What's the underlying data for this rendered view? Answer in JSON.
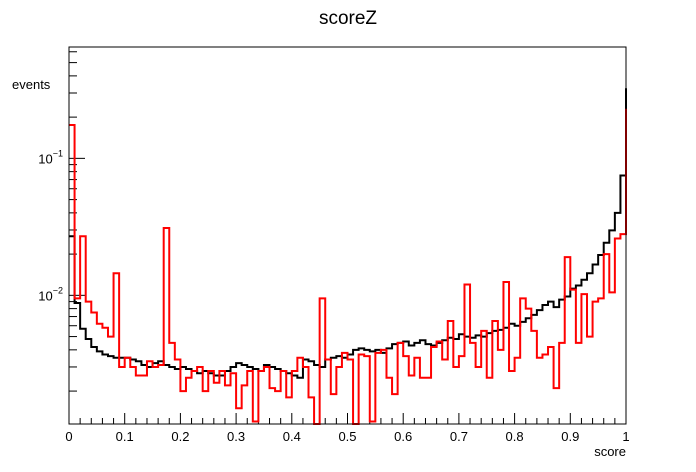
{
  "chart_data": {
    "type": "line",
    "title": "scoreZ",
    "xlabel": "score",
    "ylabel": "events",
    "xlim": [
      0,
      1
    ],
    "ylim": [
      0.00115,
      0.65
    ],
    "yscale": "log",
    "x_ticks": [
      {
        "value": 0,
        "label": "0"
      },
      {
        "value": 0.1,
        "label": "0.1"
      },
      {
        "value": 0.2,
        "label": "0.2"
      },
      {
        "value": 0.3,
        "label": "0.3"
      },
      {
        "value": 0.4,
        "label": "0.4"
      },
      {
        "value": 0.5,
        "label": "0.5"
      },
      {
        "value": 0.6,
        "label": "0.6"
      },
      {
        "value": 0.7,
        "label": "0.7"
      },
      {
        "value": 0.8,
        "label": "0.8"
      },
      {
        "value": 0.9,
        "label": "0.9"
      },
      {
        "value": 1,
        "label": "1"
      }
    ],
    "y_ticks": [
      {
        "value": 0.1,
        "base": "10",
        "exp": "−1"
      },
      {
        "value": 0.01,
        "base": "10",
        "exp": "−2"
      }
    ],
    "bin_edges_start": 0,
    "bin_width": 0.01,
    "series": [
      {
        "name": "black",
        "color": "#000000",
        "values": [
          0.027,
          0.0088,
          0.0057,
          0.0048,
          0.0042,
          0.0039,
          0.0037,
          0.0036,
          0.0035,
          0.0035,
          0.0035,
          0.0034,
          0.0033,
          0.0031,
          0.003,
          0.0032,
          0.0033,
          0.0031,
          0.003,
          0.0029,
          0.003,
          0.0029,
          0.0028,
          0.0027,
          0.0028,
          0.0027,
          0.0026,
          0.0026,
          0.0028,
          0.003,
          0.0032,
          0.0031,
          0.003,
          0.0029,
          0.0028,
          0.0031,
          0.003,
          0.0029,
          0.0028,
          0.0027,
          0.0026,
          0.0025,
          0.0034,
          0.0033,
          0.0031,
          0.003,
          0.0034,
          0.0035,
          0.0036,
          0.0035,
          0.0037,
          0.004,
          0.0041,
          0.004,
          0.0039,
          0.004,
          0.0038,
          0.0041,
          0.0044,
          0.0045,
          0.0046,
          0.0043,
          0.0045,
          0.0047,
          0.0044,
          0.0043,
          0.0045,
          0.0047,
          0.0049,
          0.0048,
          0.0052,
          0.005,
          0.0049,
          0.0051,
          0.005,
          0.0053,
          0.0055,
          0.0056,
          0.0058,
          0.0062,
          0.006,
          0.0064,
          0.0068,
          0.0072,
          0.0078,
          0.0085,
          0.009,
          0.0082,
          0.0093,
          0.0098,
          0.0112,
          0.0118,
          0.013,
          0.0145,
          0.0168,
          0.0197,
          0.0242,
          0.0298,
          0.04,
          0.075,
          0.325
        ]
      },
      {
        "name": "red",
        "color": "#ff0000",
        "values": [
          0.175,
          0.0095,
          0.027,
          0.009,
          0.0075,
          0.0062,
          0.0058,
          0.005,
          0.0145,
          0.003,
          0.0035,
          0.003,
          0.0026,
          0.0026,
          0.0033,
          0.003,
          0.0031,
          0.031,
          0.0045,
          0.0034,
          0.002,
          0.0025,
          0.0028,
          0.003,
          0.002,
          0.0028,
          0.0023,
          0.0028,
          0.0022,
          0.0027,
          0.0015,
          0.0022,
          0.0028,
          0.0012,
          0.0028,
          0.003,
          0.0021,
          0.002,
          0.0028,
          0.0018,
          0.0028,
          0.0035,
          0.003,
          0.0018,
          0.001,
          0.0095,
          0.0034,
          0.0019,
          0.003,
          0.0038,
          0.0034,
          0.001,
          0.0037,
          0.0036,
          0.0012,
          0.0038,
          0.004,
          0.0025,
          0.0019,
          0.0045,
          0.0036,
          0.0026,
          0.0035,
          0.0025,
          0.0025,
          0.0042,
          0.0046,
          0.0034,
          0.0065,
          0.003,
          0.0036,
          0.012,
          0.0045,
          0.003,
          0.0055,
          0.0025,
          0.0065,
          0.004,
          0.0125,
          0.0028,
          0.0035,
          0.0095,
          0.008,
          0.0055,
          0.0035,
          0.0037,
          0.0042,
          0.0021,
          0.0045,
          0.019,
          0.011,
          0.0045,
          0.0102,
          0.005,
          0.009,
          0.0095,
          0.02,
          0.0105,
          0.026,
          0.028,
          0.23
        ]
      }
    ]
  }
}
